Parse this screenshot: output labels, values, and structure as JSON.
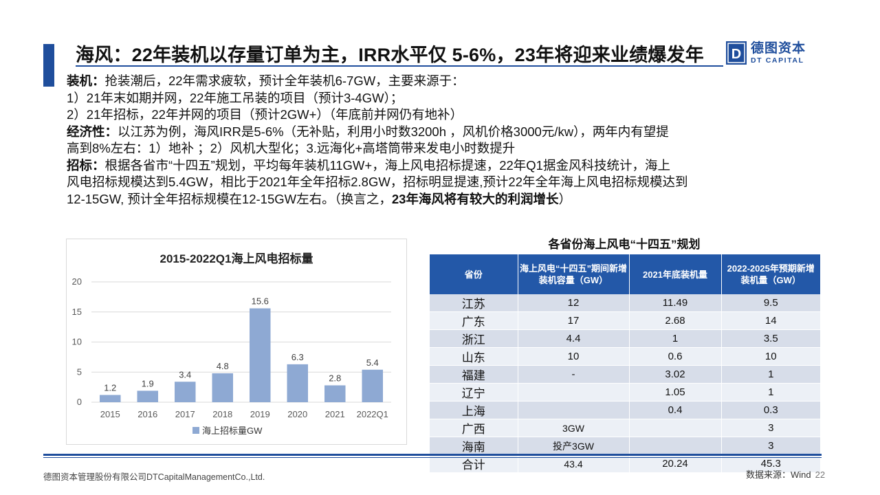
{
  "slide": {
    "title": "海风：22年装机以存量订单为主，IRR水平仅 5-6%，23年将迎来业绩爆发年",
    "logo": {
      "cn": "德图资本",
      "en": "DT CAPITAL",
      "mark": "D"
    },
    "brand_color": "#1f4e9c"
  },
  "body": {
    "line1_label": "装机：",
    "line1_text": "抢装潮后，22年需求疲软，预计全年装机6-7GW，主要来源于：",
    "line2": "1）21年末如期并网，22年施工吊装的项目（预计3-4GW）；",
    "line3": "2）21年招标，22年并网的项目（预计2GW+）（年底前并网仍有地补）",
    "line4_label": "经济性：",
    "line4_text": "以江苏为例，海风IRR是5-6%（无补贴，利用小时数3200h ，风机价格3000元/kw），两年内有望提",
    "line5": "高到8%左右：1）地补 ；2）风机大型化；3.远海化+高塔筒带来发电小时数提升",
    "line6_label": "招标：",
    "line6_text": "根据各省市“十四五”规划，平均每年装机11GW+，海上风电招标提速，22年Q1据金风科技统计，海上",
    "line7": "风电招标规模达到5.4GW，相比于2021年全年招标2.8GW，招标明显提速,预计22年全年海上风电招标规模达到",
    "line8_text": "12-15GW, 预计全年招标规模在12-15GW左右。（换言之，",
    "line8_bold": "23年海风将有较大的利润增长",
    "line8_end": "）"
  },
  "chart_data": {
    "type": "bar",
    "title": "2015-2022Q1海上风电招标量",
    "categories": [
      "2015",
      "2016",
      "2017",
      "2018",
      "2019",
      "2020",
      "2021",
      "2022Q1"
    ],
    "series": [
      {
        "name": "海上招标量GW",
        "values": [
          1.2,
          1.9,
          3.4,
          4.8,
          15.6,
          6.3,
          2.8,
          5.4
        ],
        "color": "#8ea9d3"
      }
    ],
    "ylim": [
      0,
      20
    ],
    "yticks": [
      0,
      5,
      10,
      15,
      20
    ],
    "grid": true,
    "legend": "bottom",
    "data_labels": true
  },
  "table": {
    "title": "各省份海上风电“十四五”规划",
    "headers": [
      "省份",
      "海上风电“十四五”期间新增装机容量（GW）",
      "2021年底装机量",
      "2022-2025年预期新增装机量（GW）"
    ],
    "rows": [
      [
        "江苏",
        "12",
        "11.49",
        "9.5"
      ],
      [
        "广东",
        "17",
        "2.68",
        "14"
      ],
      [
        "浙江",
        "4.4",
        "1",
        "3.5"
      ],
      [
        "山东",
        "10",
        "0.6",
        "10"
      ],
      [
        "福建",
        "-",
        "3.02",
        "1"
      ],
      [
        "辽宁",
        "",
        "1.05",
        "1"
      ],
      [
        "上海",
        "",
        "0.4",
        "0.3"
      ],
      [
        "广西",
        "3GW",
        "",
        "3"
      ],
      [
        "海南",
        "投产3GW",
        "",
        "3"
      ],
      [
        "合计",
        "43.4",
        "20.24",
        "45.3"
      ]
    ],
    "header_color": "#2358a8"
  },
  "footer": {
    "company": "德图资本管理股份有限公司DTCapitalManagementCo.,Ltd.",
    "source": "数据来源：Wind",
    "page": "22"
  }
}
